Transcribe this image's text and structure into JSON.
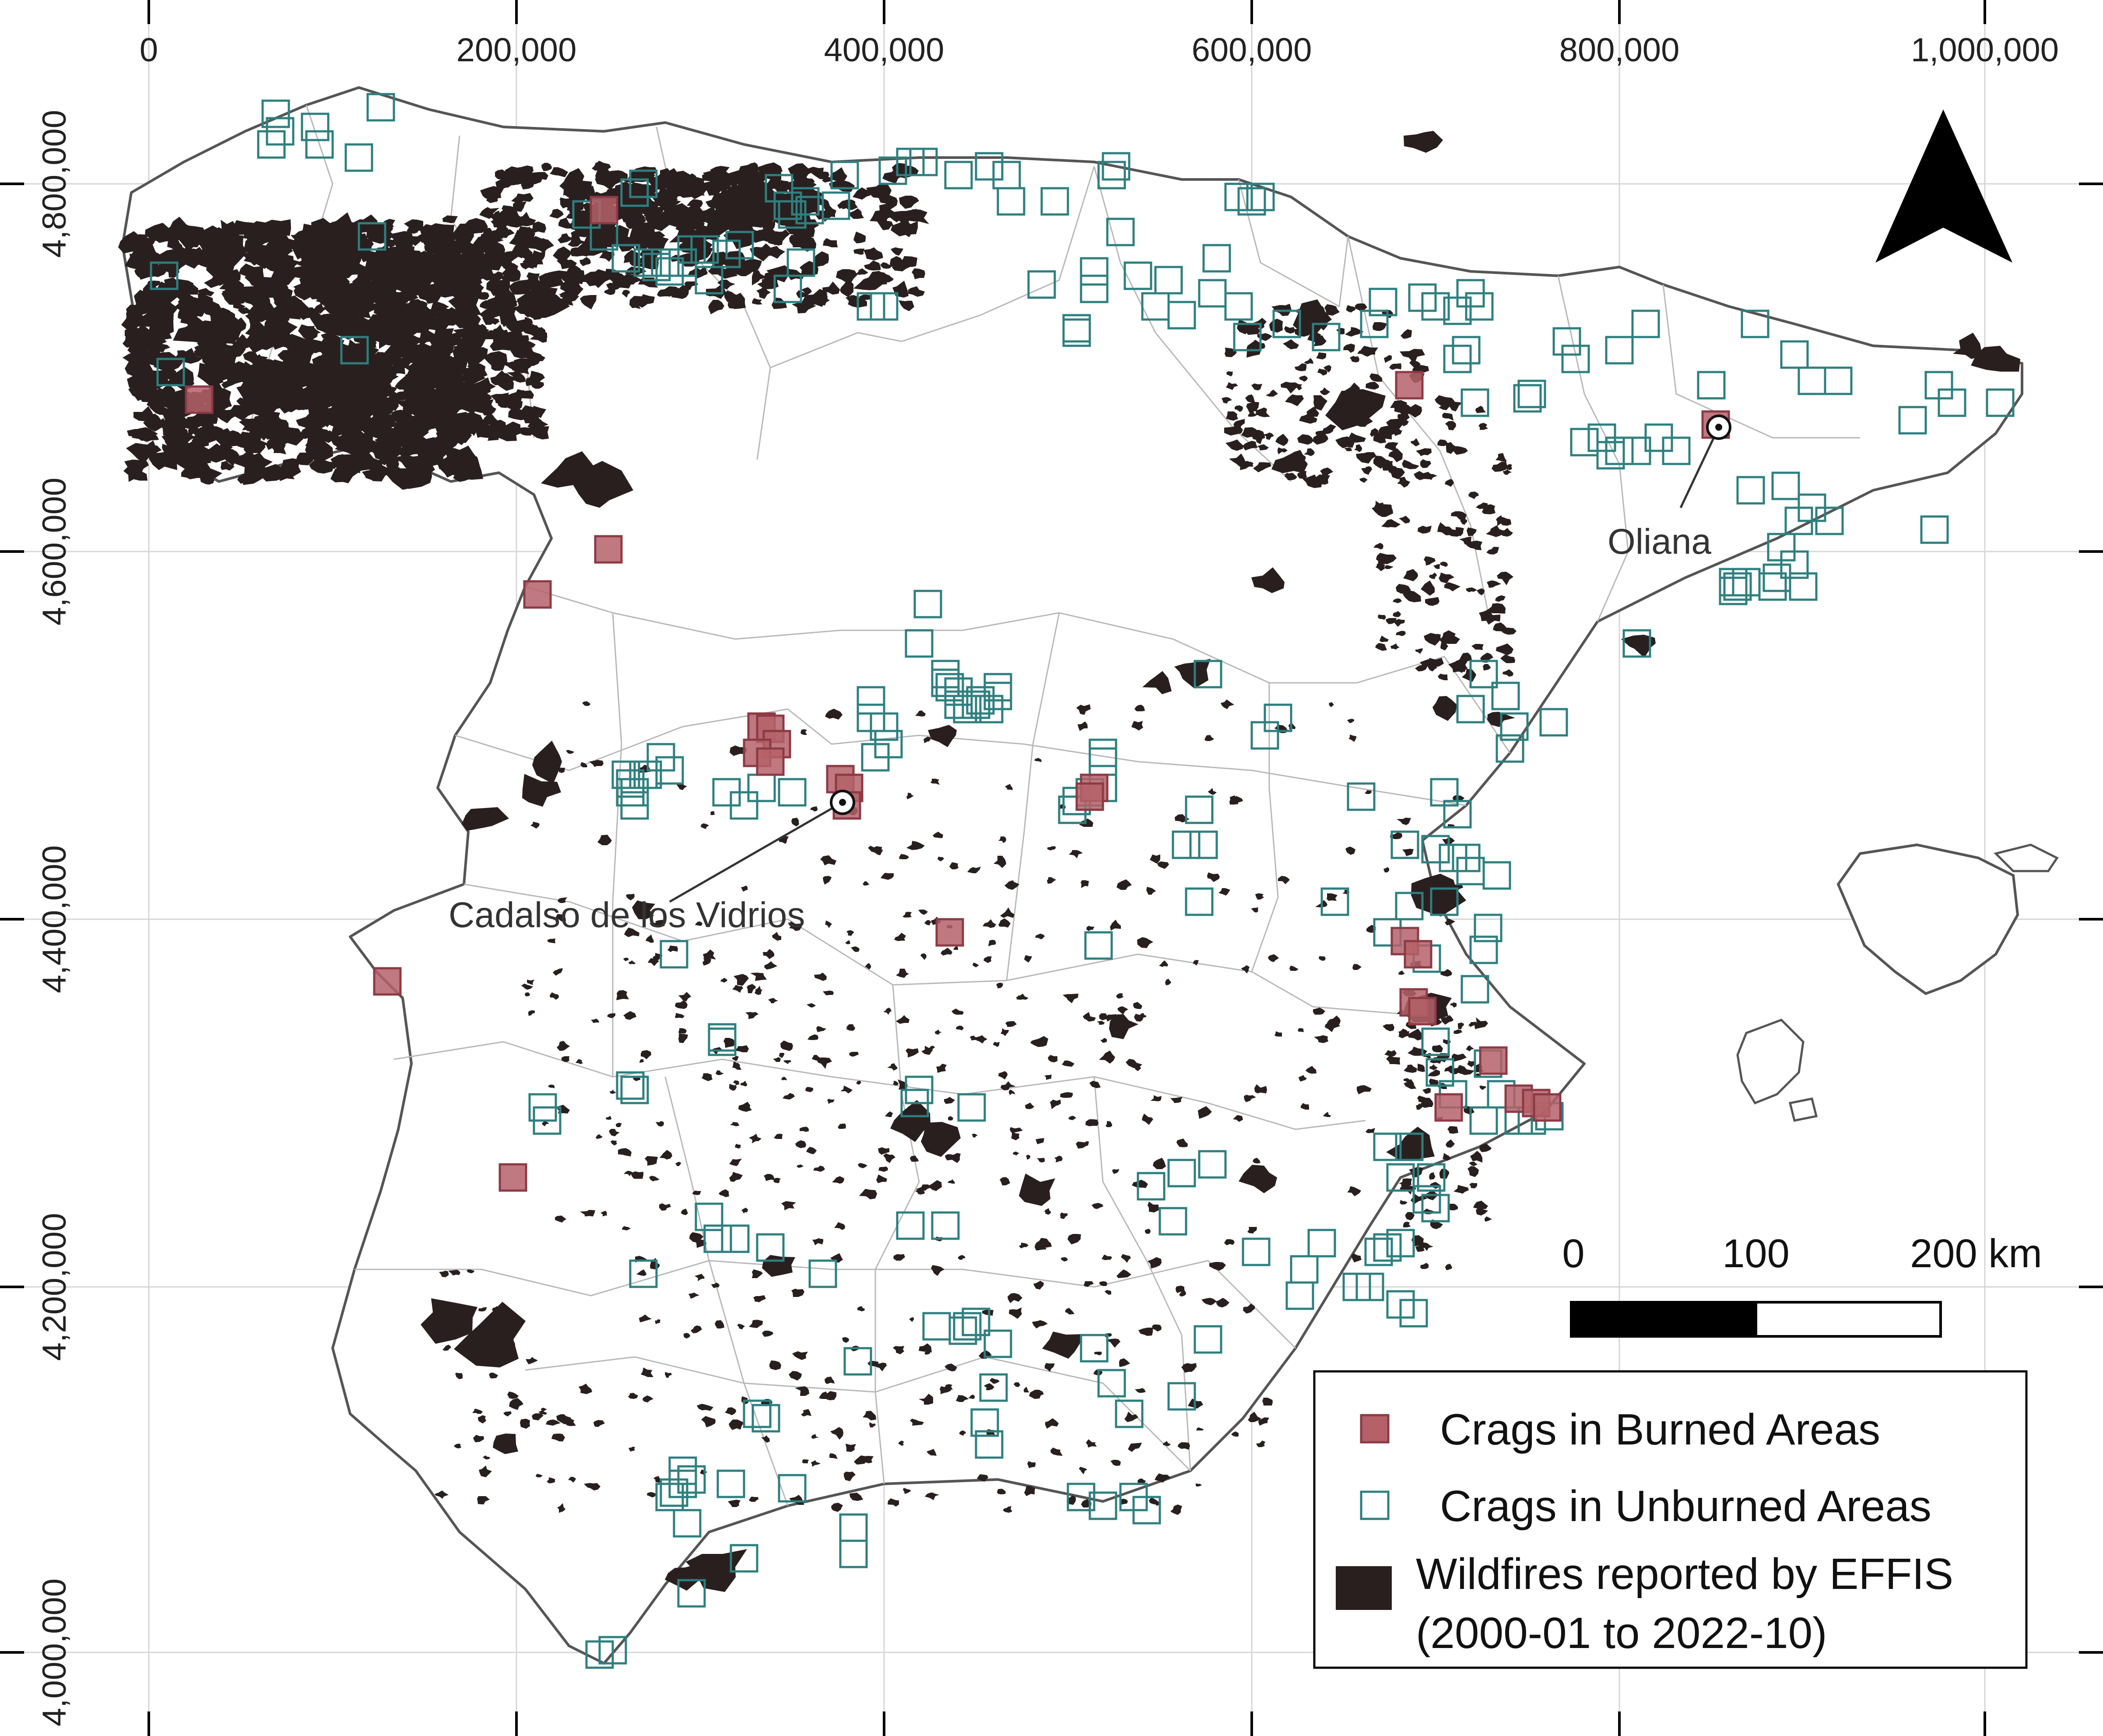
{
  "map": {
    "x_ticks": [
      "0",
      "200,000",
      "400,000",
      "600,000",
      "800,000",
      "1,000,000"
    ],
    "y_ticks": [
      "4,800,000",
      "4,600,000",
      "4,400,000",
      "4,200,000",
      "4,000,000"
    ],
    "north_arrow_icon": "north-arrow-icon",
    "colors": {
      "burned_fill": "#b5616a",
      "burned_stroke": "#8c3a44",
      "unburned_stroke": "#2e7f7f",
      "wildfire": "#2a1f1f",
      "coast": "#555555",
      "province_border": "#b8b8b8",
      "grid": "#d6d6d6"
    }
  },
  "places": {
    "oliana": "Oliana",
    "cadalso": "Cadalso de los Vidrios"
  },
  "scale_bar": {
    "labels": [
      "0",
      "100",
      "200 km"
    ]
  },
  "legend": {
    "burned": "Crags in Burned Areas",
    "unburned": "Crags in Unburned Areas",
    "wildfire_line1": "Wildfires reported by EFFIS",
    "wildfire_line2": "(2000-01 to 2022-10)"
  }
}
